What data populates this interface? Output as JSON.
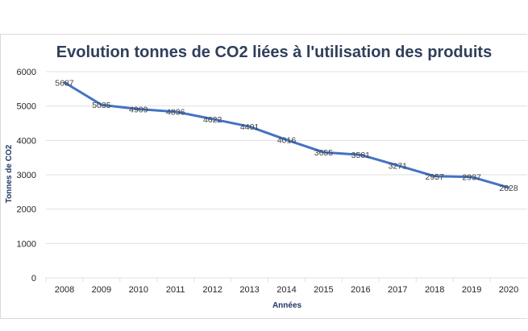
{
  "chart_data": {
    "type": "line",
    "title": "Evolution tonnes de CO2 liées à l'utilisation des produits",
    "xlabel": "Années",
    "ylabel": "Tonnes de CO2",
    "ylim": [
      0,
      6000
    ],
    "yticks": [
      "0",
      "1000",
      "2000",
      "3000",
      "4000",
      "5000",
      "6000"
    ],
    "categories": [
      "2008",
      "2009",
      "2010",
      "2011",
      "2012",
      "2013",
      "2014",
      "2015",
      "2016",
      "2017",
      "2018",
      "2019",
      "2020"
    ],
    "values": [
      5687,
      5035,
      4909,
      4836,
      4622,
      4401,
      4016,
      3655,
      3581,
      3271,
      2957,
      2937,
      2628
    ],
    "grid": true,
    "line_color": "#4472c4"
  }
}
